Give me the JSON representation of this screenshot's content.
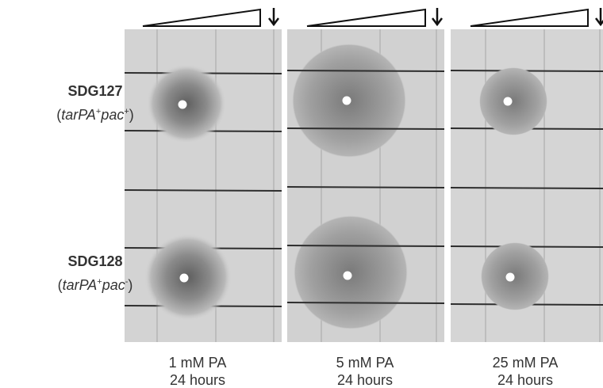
{
  "strains": [
    {
      "name": "SDG127",
      "genotype": [
        "(",
        "tarPA",
        "+",
        "pac",
        "+",
        ")"
      ]
    },
    {
      "name": "SDG128",
      "genotype": [
        "(",
        "tarPA",
        "+",
        "pac",
        "-",
        ")"
      ]
    }
  ],
  "panels": [
    {
      "condition": "1 mM PA",
      "time": "24 hours"
    },
    {
      "condition": "5 mM PA",
      "time": "24 hours"
    },
    {
      "condition": "25 mM PA",
      "time": "24 hours"
    }
  ]
}
